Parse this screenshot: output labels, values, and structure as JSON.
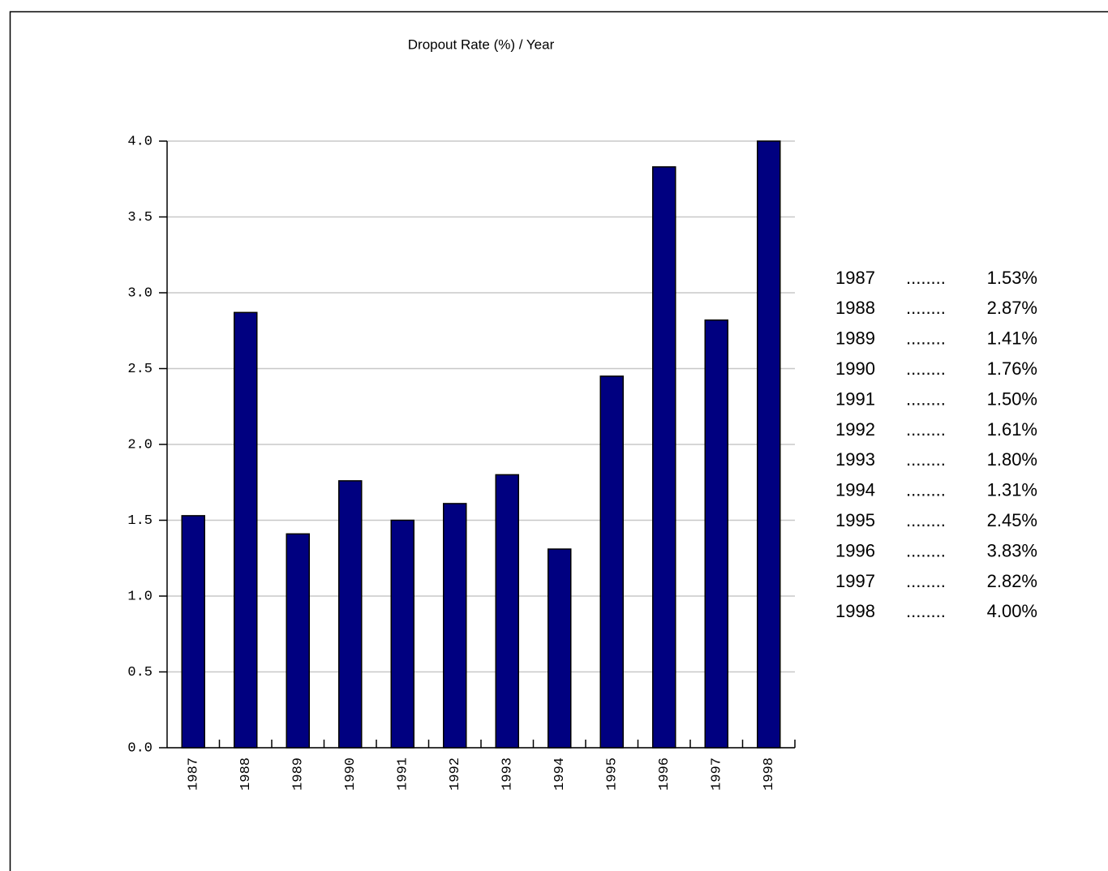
{
  "chart_data": {
    "type": "bar",
    "title": "Dropout Rate (%) / Year",
    "categories": [
      "1987",
      "1988",
      "1989",
      "1990",
      "1991",
      "1992",
      "1993",
      "1994",
      "1995",
      "1996",
      "1997",
      "1998"
    ],
    "values": [
      1.53,
      2.87,
      1.41,
      1.76,
      1.5,
      1.61,
      1.8,
      1.31,
      2.45,
      3.83,
      2.82,
      4.0
    ],
    "value_labels": [
      "1.53%",
      "2.87%",
      "1.41%",
      "1.76%",
      "1.50%",
      "1.61%",
      "1.80%",
      "1.31%",
      "2.45%",
      "3.83%",
      "2.82%",
      "4.00%"
    ],
    "leader": "........",
    "color": "#000080",
    "ylim": [
      0,
      4
    ],
    "yticks": [
      {
        "value": 0,
        "label": "0.0"
      },
      0.5,
      {
        "value": 1,
        "label": "1.0"
      },
      1.5,
      {
        "value": 2,
        "label": "2.0"
      },
      2.5,
      {
        "value": 3,
        "label": "3.0"
      },
      3.5,
      {
        "value": 4,
        "label": "4.0"
      }
    ],
    "grid": true
  }
}
